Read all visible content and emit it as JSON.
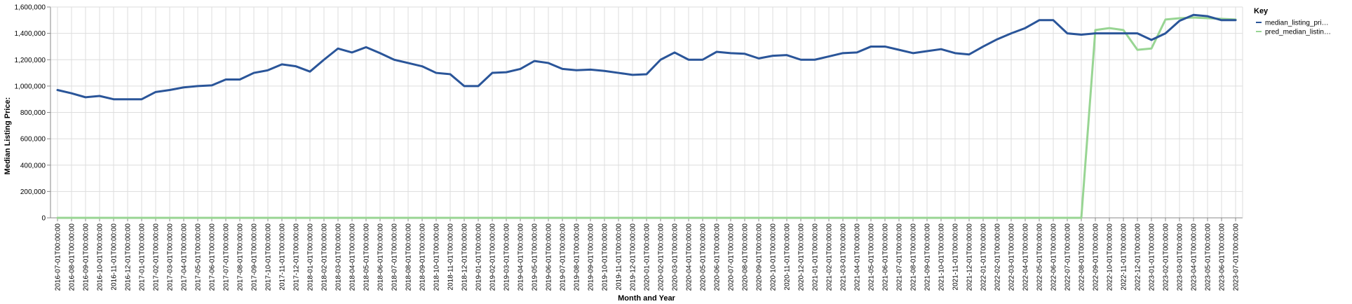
{
  "chart_data": {
    "type": "line",
    "title": "",
    "xlabel": "Month and Year",
    "ylabel": "Median Listing Price:",
    "ylim": [
      0,
      1600000
    ],
    "yticks": [
      "0",
      "200,000",
      "400,000",
      "600,000",
      "800,000",
      "1,000,000",
      "1,200,000",
      "1,400,000",
      "1,600,000"
    ],
    "grid": true,
    "legend": {
      "title": "Key",
      "placement": "right"
    },
    "x": [
      "2016-07-01T00:00:00",
      "2016-08-01T00:00:00",
      "2016-09-01T00:00:00",
      "2016-10-01T00:00:00",
      "2016-11-01T00:00:00",
      "2016-12-01T00:00:00",
      "2017-01-01T00:00:00",
      "2017-02-01T00:00:00",
      "2017-03-01T00:00:00",
      "2017-04-01T00:00:00",
      "2017-05-01T00:00:00",
      "2017-06-01T00:00:00",
      "2017-07-01T00:00:00",
      "2017-08-01T00:00:00",
      "2017-09-01T00:00:00",
      "2017-10-01T00:00:00",
      "2017-11-01T00:00:00",
      "2017-12-01T00:00:00",
      "2018-01-01T00:00:00",
      "2018-02-01T00:00:00",
      "2018-03-01T00:00:00",
      "2018-04-01T00:00:00",
      "2018-05-01T00:00:00",
      "2018-06-01T00:00:00",
      "2018-07-01T00:00:00",
      "2018-08-01T00:00:00",
      "2018-09-01T00:00:00",
      "2018-10-01T00:00:00",
      "2018-11-01T00:00:00",
      "2018-12-01T00:00:00",
      "2019-01-01T00:00:00",
      "2019-02-01T00:00:00",
      "2019-03-01T00:00:00",
      "2019-04-01T00:00:00",
      "2019-05-01T00:00:00",
      "2019-06-01T00:00:00",
      "2019-07-01T00:00:00",
      "2019-08-01T00:00:00",
      "2019-09-01T00:00:00",
      "2019-10-01T00:00:00",
      "2019-11-01T00:00:00",
      "2019-12-01T00:00:00",
      "2020-01-01T00:00:00",
      "2020-02-01T00:00:00",
      "2020-03-01T00:00:00",
      "2020-04-01T00:00:00",
      "2020-05-01T00:00:00",
      "2020-06-01T00:00:00",
      "2020-07-01T00:00:00",
      "2020-08-01T00:00:00",
      "2020-09-01T00:00:00",
      "2020-10-01T00:00:00",
      "2020-11-01T00:00:00",
      "2020-12-01T00:00:00",
      "2021-01-01T00:00:00",
      "2021-02-01T00:00:00",
      "2021-03-01T00:00:00",
      "2021-04-01T00:00:00",
      "2021-05-01T00:00:00",
      "2021-06-01T00:00:00",
      "2021-07-01T00:00:00",
      "2021-08-01T00:00:00",
      "2021-09-01T00:00:00",
      "2021-10-01T00:00:00",
      "2021-11-01T00:00:00",
      "2021-12-01T00:00:00",
      "2022-01-01T00:00:00",
      "2022-02-01T00:00:00",
      "2022-03-01T00:00:00",
      "2022-04-01T00:00:00",
      "2022-05-01T00:00:00",
      "2022-06-01T00:00:00",
      "2022-07-01T00:00:00",
      "2022-08-01T00:00:00",
      "2022-09-01T00:00:00",
      "2022-10-01T00:00:00",
      "2022-11-01T00:00:00",
      "2022-12-01T00:00:00",
      "2023-01-01T00:00:00",
      "2023-02-01T00:00:00",
      "2023-03-01T00:00:00",
      "2023-04-01T00:00:00",
      "2023-05-01T00:00:00",
      "2023-06-01T00:00:00",
      "2023-07-01T00:00:00"
    ],
    "series": [
      {
        "name": "median_listing_pri…",
        "color": "#2a5599",
        "values": [
          970000,
          945000,
          915000,
          925000,
          900000,
          900000,
          900000,
          955000,
          970000,
          990000,
          1000000,
          1005000,
          1050000,
          1050000,
          1100000,
          1120000,
          1165000,
          1150000,
          1110000,
          1200000,
          1285000,
          1255000,
          1295000,
          1250000,
          1200000,
          1175000,
          1150000,
          1100000,
          1090000,
          1000000,
          1000000,
          1100000,
          1105000,
          1130000,
          1190000,
          1175000,
          1130000,
          1120000,
          1125000,
          1115000,
          1100000,
          1085000,
          1090000,
          1200000,
          1255000,
          1200000,
          1200000,
          1260000,
          1250000,
          1245000,
          1210000,
          1230000,
          1235000,
          1200000,
          1200000,
          1225000,
          1250000,
          1255000,
          1300000,
          1300000,
          1275000,
          1250000,
          1265000,
          1280000,
          1250000,
          1240000,
          1300000,
          1355000,
          1400000,
          1440000,
          1500000,
          1500000,
          1400000,
          1390000,
          1400000,
          1400000,
          1400000,
          1400000,
          1350000,
          1400000,
          1495000,
          1540000,
          1530000,
          1500000,
          1500000
        ]
      },
      {
        "name": "pred_median_listin…",
        "color": "#98d593",
        "values": [
          0,
          0,
          0,
          0,
          0,
          0,
          0,
          0,
          0,
          0,
          0,
          0,
          0,
          0,
          0,
          0,
          0,
          0,
          0,
          0,
          0,
          0,
          0,
          0,
          0,
          0,
          0,
          0,
          0,
          0,
          0,
          0,
          0,
          0,
          0,
          0,
          0,
          0,
          0,
          0,
          0,
          0,
          0,
          0,
          0,
          0,
          0,
          0,
          0,
          0,
          0,
          0,
          0,
          0,
          0,
          0,
          0,
          0,
          0,
          0,
          0,
          0,
          0,
          0,
          0,
          0,
          0,
          0,
          0,
          0,
          0,
          0,
          0,
          0,
          1425000,
          1440000,
          1425000,
          1275000,
          1285000,
          1505000,
          1515000,
          1520000,
          1515000,
          1510000,
          1505000
        ]
      }
    ]
  }
}
